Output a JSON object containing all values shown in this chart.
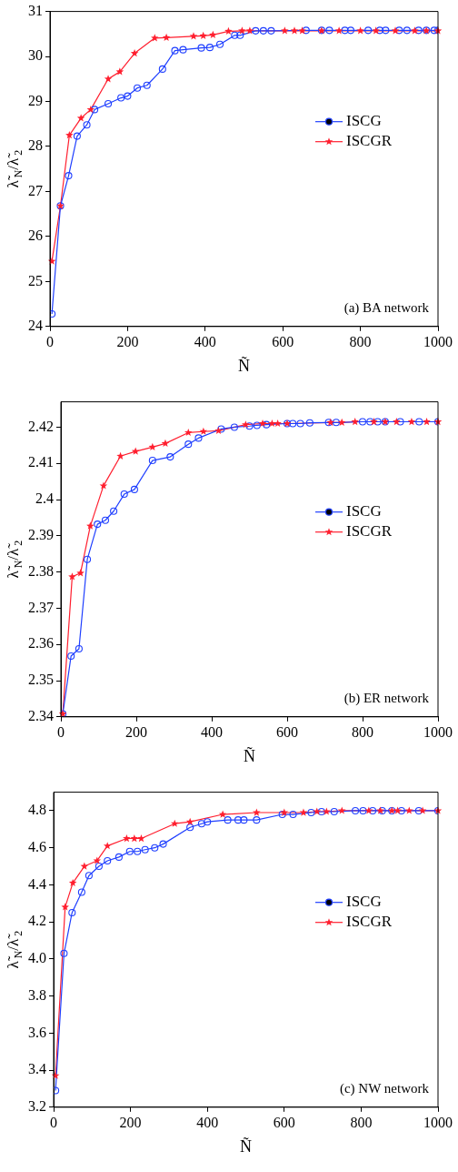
{
  "chart_data": [
    {
      "type": "line",
      "xlabel": "Ñ",
      "ylabel": "λ̃$_{N}$/λ̃$_{2}$",
      "annotations": [
        "(a) BA network"
      ],
      "xlim": [
        0,
        1000
      ],
      "xticks": [
        0,
        200,
        400,
        600,
        800,
        1000
      ],
      "ylim": [
        24,
        31
      ],
      "yticks": [
        24,
        25,
        26,
        27,
        28,
        29,
        30,
        31
      ],
      "legend": "center right",
      "series": [
        {
          "name": "ISCG",
          "color": "#1f3fff",
          "marker": "circle",
          "x": [
            5,
            27,
            48,
            70,
            95,
            115,
            150,
            183,
            200,
            225,
            250,
            290,
            322,
            343,
            390,
            412,
            438,
            476,
            490,
            530,
            550,
            570,
            660,
            700,
            720,
            760,
            775,
            820,
            850,
            865,
            900,
            920,
            950,
            970,
            990,
            1000
          ],
          "values": [
            24.28,
            26.68,
            27.35,
            28.23,
            28.48,
            28.82,
            28.95,
            29.08,
            29.12,
            29.3,
            29.36,
            29.72,
            30.13,
            30.15,
            30.19,
            30.2,
            30.27,
            30.47,
            30.47,
            30.57,
            30.57,
            30.57,
            30.58,
            30.58,
            30.58,
            30.58,
            30.58,
            30.58,
            30.58,
            30.58,
            30.58,
            30.58,
            30.58,
            30.58,
            30.58,
            30.58
          ]
        },
        {
          "name": "ISCGR",
          "color": "#ff1f2f",
          "marker": "star",
          "x": [
            5,
            27,
            50,
            80,
            105,
            150,
            180,
            218,
            270,
            300,
            370,
            395,
            420,
            460,
            495,
            515,
            605,
            630,
            650,
            700,
            745,
            800,
            840,
            890,
            940,
            970,
            1000
          ],
          "values": [
            25.45,
            26.68,
            28.25,
            28.63,
            28.82,
            29.5,
            29.66,
            30.07,
            30.41,
            30.42,
            30.45,
            30.46,
            30.48,
            30.56,
            30.57,
            30.57,
            30.57,
            30.57,
            30.57,
            30.57,
            30.57,
            30.57,
            30.57,
            30.57,
            30.57,
            30.57,
            30.57
          ]
        }
      ]
    },
    {
      "type": "line",
      "xlabel": "Ñ",
      "ylabel": "λ̃$_{N}$/λ̃$_{2}$",
      "annotations": [
        "(b) ER network"
      ],
      "xlim": [
        0,
        1000
      ],
      "xticks": [
        0,
        200,
        400,
        600,
        800,
        1000
      ],
      "ylim": [
        2.34,
        2.427
      ],
      "yticks": [
        2.34,
        2.35,
        2.36,
        2.37,
        2.38,
        2.39,
        2.4,
        2.41,
        2.42
      ],
      "legend": "center right",
      "series": [
        {
          "name": "ISCG",
          "color": "#1f3fff",
          "marker": "circle",
          "x": [
            5,
            27,
            48,
            70,
            97,
            118,
            140,
            168,
            195,
            243,
            290,
            338,
            365,
            425,
            460,
            500,
            520,
            545,
            600,
            615,
            635,
            660,
            710,
            730,
            800,
            820,
            840,
            860,
            900,
            950,
            1000
          ],
          "values": [
            2.3408,
            2.3568,
            2.3588,
            2.3835,
            2.3932,
            2.3943,
            2.3968,
            2.4015,
            2.4028,
            2.4108,
            2.4118,
            2.4153,
            2.417,
            2.4195,
            2.42,
            2.4203,
            2.4205,
            2.4207,
            2.421,
            2.421,
            2.421,
            2.4212,
            2.4213,
            2.4213,
            2.4215,
            2.4215,
            2.4215,
            2.4215,
            2.4215,
            2.4215,
            2.4215
          ]
        },
        {
          "name": "ISCGR",
          "color": "#ff1f2f",
          "marker": "star",
          "x": [
            5,
            30,
            52,
            78,
            113,
            158,
            198,
            243,
            277,
            338,
            378,
            418,
            490,
            535,
            560,
            575,
            600,
            715,
            745,
            780,
            830,
            860,
            890,
            930,
            970,
            1000
          ],
          "values": [
            2.3408,
            2.3787,
            2.3797,
            2.3927,
            2.4038,
            2.412,
            2.4133,
            2.4145,
            2.4155,
            2.4185,
            2.4188,
            2.419,
            2.4207,
            2.421,
            2.421,
            2.421,
            2.421,
            2.4213,
            2.4213,
            2.4215,
            2.4215,
            2.4215,
            2.4215,
            2.4215,
            2.4215,
            2.4215
          ]
        }
      ]
    },
    {
      "type": "line",
      "xlabel": "Ñ",
      "ylabel": "λ̃$_{N}$/λ̃$_{2}$",
      "annotations": [
        "(c) NW network"
      ],
      "xlim": [
        0,
        1000
      ],
      "xticks": [
        0,
        200,
        400,
        600,
        800,
        1000
      ],
      "ylim": [
        3.2,
        4.9
      ],
      "yticks": [
        {
          "value": 3.2,
          "label": "3.2"
        },
        {
          "value": 3.4,
          "label": "3.4"
        },
        {
          "value": 3.6,
          "label": "3.6"
        },
        {
          "value": 3.8,
          "label": "3.8"
        },
        {
          "value": 4,
          "label": "4.0"
        },
        {
          "value": 4.2,
          "label": "4.2"
        },
        {
          "value": 4.4,
          "label": "4.4"
        },
        {
          "value": 4.6,
          "label": "4.6"
        },
        {
          "value": 4.8,
          "label": "4.8"
        }
      ],
      "legend": "center right",
      "series": [
        {
          "name": "ISCG",
          "color": "#1f3fff",
          "marker": "circle",
          "x": [
            5,
            27,
            48,
            73,
            92,
            118,
            140,
            170,
            198,
            218,
            238,
            263,
            285,
            355,
            385,
            400,
            453,
            480,
            495,
            528,
            595,
            623,
            670,
            697,
            730,
            785,
            805,
            830,
            855,
            880,
            905,
            950,
            1000
          ],
          "values": [
            3.29,
            4.03,
            4.25,
            4.36,
            4.45,
            4.5,
            4.53,
            4.55,
            4.58,
            4.58,
            4.59,
            4.6,
            4.62,
            4.71,
            4.73,
            4.74,
            4.75,
            4.75,
            4.75,
            4.75,
            4.78,
            4.78,
            4.79,
            4.795,
            4.795,
            4.8,
            4.8,
            4.8,
            4.8,
            4.8,
            4.8,
            4.8,
            4.8
          ]
        },
        {
          "name": "ISCGR",
          "color": "#ff1f2f",
          "marker": "star",
          "x": [
            5,
            30,
            50,
            80,
            113,
            140,
            190,
            210,
            228,
            315,
            355,
            440,
            528,
            600,
            650,
            685,
            710,
            750,
            820,
            850,
            880,
            895,
            925,
            960,
            1000
          ],
          "values": [
            3.37,
            4.28,
            4.41,
            4.5,
            4.53,
            4.61,
            4.65,
            4.65,
            4.65,
            4.73,
            4.74,
            4.78,
            4.79,
            4.79,
            4.79,
            4.795,
            4.795,
            4.8,
            4.8,
            4.8,
            4.8,
            4.8,
            4.8,
            4.8,
            4.8
          ]
        }
      ]
    }
  ]
}
